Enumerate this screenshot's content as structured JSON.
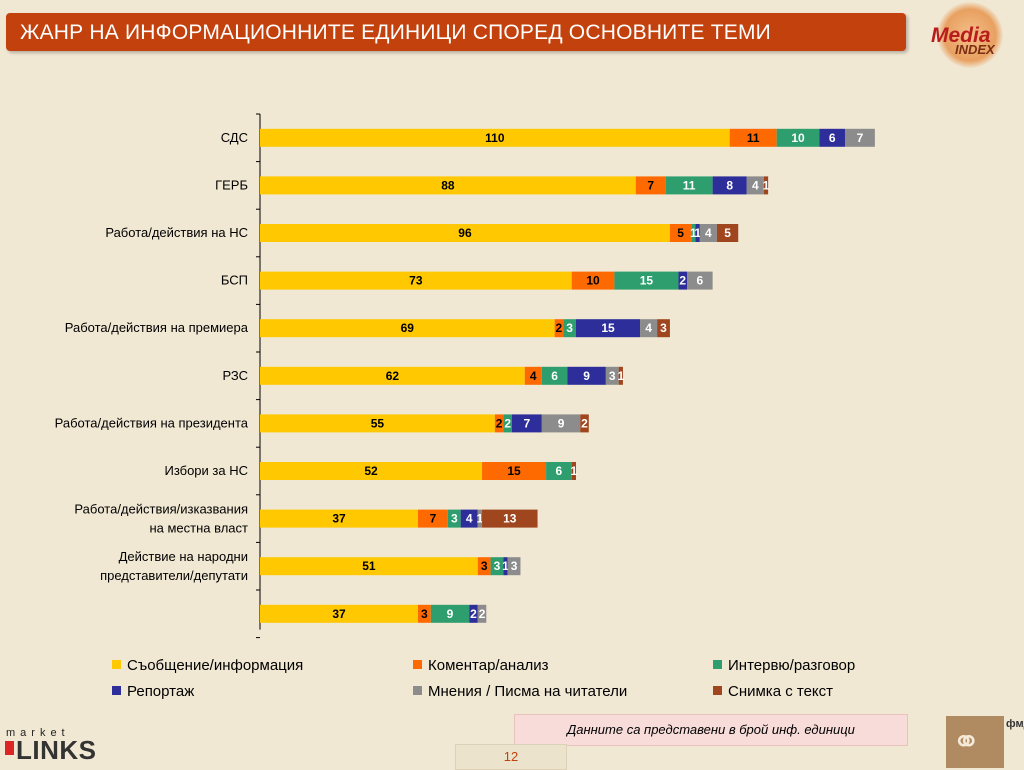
{
  "title": "ЖАНР НА ИНФОРМАЦИОННИТЕ ЕДИНИЦИ СПОРЕД ОСНОВНИТЕ ТЕМИ",
  "logo_media_index": {
    "word1": "Media",
    "word2": "INDEX"
  },
  "note": "Данните са представени в брой инф. единици",
  "page_number": "12",
  "logo_market_links": {
    "small": "market",
    "big": "LINKS"
  },
  "logo_fmd": {
    "text": "фмд"
  },
  "colors": {
    "background": "#f1e8d4",
    "title_bar": "#c2410c",
    "series": [
      "#ffc800",
      "#ff6a00",
      "#2e9e6e",
      "#2e2e9a",
      "#8c8c8c",
      "#a0461e"
    ]
  },
  "chart_data": {
    "type": "bar",
    "orientation": "horizontal",
    "stacked": true,
    "categories": [
      "СДС",
      "ГЕРБ",
      "Работа/действия на НС",
      "БСП",
      "Работа/действия на премиера",
      "РЗС",
      "Работа/действия на президента",
      "Избори за НС",
      "Работа/действия/изказвания на местна власт",
      "Действие на народни представители/депутати",
      ""
    ],
    "series": [
      {
        "name": "Съобщение/информация",
        "values": [
          110,
          88,
          96,
          73,
          69,
          62,
          55,
          52,
          37,
          51,
          37
        ]
      },
      {
        "name": "Коментар/анализ",
        "values": [
          11,
          7,
          5,
          10,
          2,
          4,
          2,
          15,
          7,
          3,
          3
        ]
      },
      {
        "name": "Интервю/разговор",
        "values": [
          10,
          11,
          1,
          15,
          3,
          6,
          2,
          6,
          3,
          3,
          9
        ]
      },
      {
        "name": "Репортаж",
        "values": [
          6,
          8,
          1,
          2,
          15,
          9,
          7,
          0,
          4,
          1,
          2
        ]
      },
      {
        "name": "Мнения / Писма на читатели",
        "values": [
          7,
          4,
          4,
          6,
          4,
          3,
          9,
          0,
          1,
          3,
          2
        ]
      },
      {
        "name": "Снимка с текст",
        "values": [
          0,
          1,
          5,
          0,
          3,
          1,
          2,
          1,
          13,
          0,
          0
        ]
      }
    ],
    "xlim": [
      0,
      146
    ],
    "grid": false,
    "legend_position": "bottom"
  }
}
